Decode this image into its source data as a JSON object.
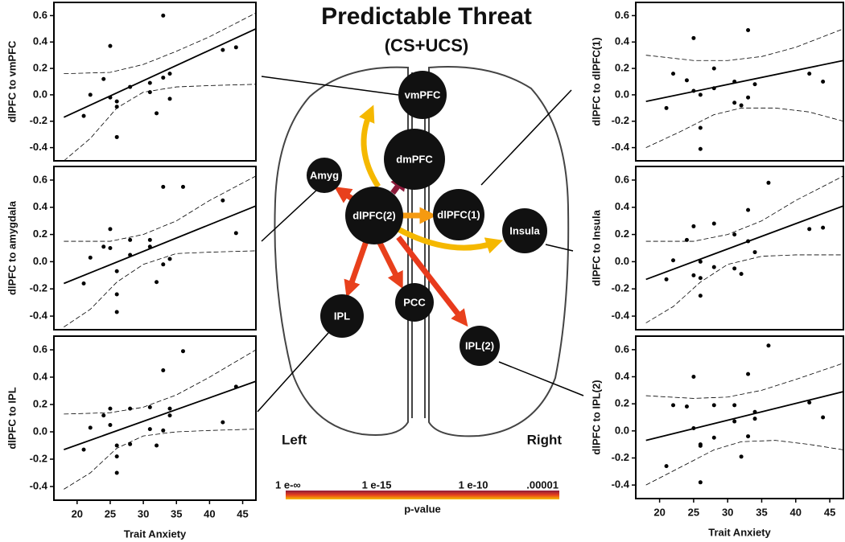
{
  "title": "Predictable Threat",
  "subtitle": "(CS+UCS)",
  "diagram": {
    "nodes": [
      "vmPFC",
      "dmPFC",
      "Amyg",
      "dlPFC(2)",
      "dlPFC(1)",
      "Insula",
      "PCC",
      "IPL",
      "IPL(2)"
    ],
    "left_label": "Left",
    "right_label": "Right",
    "colorbar": {
      "ticks": [
        "1 e-∞",
        "1 e-15",
        "1 e-10",
        ".00001"
      ],
      "label": "p-value"
    }
  },
  "chart_data": [
    {
      "type": "scatter",
      "ylabel": "dlPFC to vmPFC",
      "x": [
        21,
        22,
        24,
        25,
        25,
        26,
        26,
        26,
        28,
        31,
        31,
        32,
        33,
        33,
        34,
        34,
        42,
        44
      ],
      "values": [
        -0.16,
        0.0,
        0.12,
        0.37,
        -0.02,
        -0.05,
        -0.09,
        -0.32,
        0.06,
        0.09,
        0.02,
        -0.14,
        0.6,
        0.13,
        0.16,
        -0.03,
        0.34,
        0.36
      ],
      "fit": {
        "x": [
          18,
          47
        ],
        "values": [
          -0.17,
          0.5
        ]
      },
      "ci_upper": {
        "x": [
          18,
          25,
          30,
          35,
          40,
          47
        ],
        "values": [
          0.16,
          0.17,
          0.23,
          0.33,
          0.44,
          0.62
        ]
      },
      "ci_lower": {
        "x": [
          18,
          22,
          26,
          30,
          35,
          40,
          47
        ],
        "values": [
          -0.5,
          -0.33,
          -0.1,
          0.02,
          0.06,
          0.07,
          0.08
        ]
      },
      "xlim": [
        16.5,
        47
      ],
      "ylim": [
        -0.5,
        0.7
      ],
      "yticks": [
        -0.4,
        -0.2,
        {
          "value": 0,
          "label": "0.0"
        },
        0.2,
        0.4,
        0.6
      ]
    },
    {
      "type": "scatter",
      "ylabel": "dlPFC to amygdala",
      "x": [
        21,
        22,
        24,
        25,
        25,
        26,
        26,
        26,
        28,
        28,
        31,
        31,
        32,
        33,
        33,
        34,
        36,
        42,
        44
      ],
      "values": [
        -0.16,
        0.03,
        0.11,
        0.24,
        0.1,
        -0.07,
        -0.24,
        -0.37,
        0.16,
        0.05,
        0.16,
        0.11,
        -0.15,
        0.55,
        -0.02,
        0.02,
        0.55,
        0.45,
        0.21
      ],
      "fit": {
        "x": [
          18,
          47
        ],
        "values": [
          -0.16,
          0.41
        ]
      },
      "ci_upper": {
        "x": [
          18,
          25,
          30,
          35,
          40,
          47
        ],
        "values": [
          0.15,
          0.15,
          0.2,
          0.3,
          0.45,
          0.63
        ]
      },
      "ci_lower": {
        "x": [
          18,
          22,
          26,
          30,
          35,
          40,
          47
        ],
        "values": [
          -0.48,
          -0.35,
          -0.15,
          -0.02,
          0.06,
          0.07,
          0.08
        ]
      },
      "xlim": [
        16.5,
        47
      ],
      "ylim": [
        -0.5,
        0.7
      ],
      "yticks": [
        -0.4,
        -0.2,
        {
          "value": 0,
          "label": "0.0"
        },
        0.2,
        0.4,
        0.6
      ]
    },
    {
      "type": "scatter",
      "ylabel": "dlPFC to IPL",
      "xlabel": "Trait Anxiety",
      "x": [
        21,
        22,
        24,
        25,
        25,
        26,
        26,
        26,
        28,
        28,
        31,
        31,
        32,
        33,
        33,
        34,
        34,
        36,
        42,
        44
      ],
      "values": [
        -0.13,
        0.03,
        0.12,
        0.17,
        0.05,
        -0.1,
        -0.18,
        -0.3,
        0.17,
        -0.09,
        0.18,
        0.02,
        -0.1,
        0.45,
        0.01,
        0.12,
        0.17,
        0.59,
        0.07,
        0.33
      ],
      "fit": {
        "x": [
          18,
          47
        ],
        "values": [
          -0.13,
          0.37
        ]
      },
      "ci_upper": {
        "x": [
          18,
          25,
          30,
          35,
          40,
          47
        ],
        "values": [
          0.13,
          0.14,
          0.18,
          0.27,
          0.4,
          0.6
        ]
      },
      "ci_lower": {
        "x": [
          18,
          22,
          26,
          30,
          35,
          40,
          47
        ],
        "values": [
          -0.42,
          -0.3,
          -0.12,
          -0.03,
          0.0,
          0.01,
          0.02
        ]
      },
      "xlim": [
        16.5,
        47
      ],
      "ylim": [
        -0.5,
        0.7
      ],
      "xticks": [
        20,
        25,
        30,
        35,
        40,
        45
      ],
      "yticks": [
        -0.4,
        -0.2,
        {
          "value": 0,
          "label": "0.0"
        },
        0.2,
        0.4,
        0.6
      ]
    },
    {
      "type": "scatter",
      "ylabel": "dlPFC to dlPFC(1)",
      "x": [
        21,
        22,
        24,
        25,
        25,
        26,
        26,
        26,
        28,
        28,
        31,
        31,
        32,
        33,
        33,
        34,
        42,
        44
      ],
      "values": [
        -0.1,
        0.16,
        0.11,
        0.43,
        0.03,
        0.0,
        -0.25,
        -0.41,
        0.2,
        0.05,
        0.1,
        -0.06,
        -0.08,
        0.49,
        -0.02,
        0.08,
        0.16,
        0.1
      ],
      "fit": {
        "x": [
          18,
          47
        ],
        "values": [
          -0.05,
          0.26
        ]
      },
      "ci_upper": {
        "x": [
          18,
          25,
          30,
          35,
          40,
          47
        ],
        "values": [
          0.3,
          0.26,
          0.26,
          0.29,
          0.36,
          0.5
        ]
      },
      "ci_lower": {
        "x": [
          18,
          23,
          28,
          32,
          37,
          42,
          47
        ],
        "values": [
          -0.4,
          -0.28,
          -0.15,
          -0.1,
          -0.1,
          -0.13,
          -0.2
        ]
      },
      "xlim": [
        16.5,
        47
      ],
      "ylim": [
        -0.5,
        0.7
      ],
      "yticks": [
        -0.4,
        -0.2,
        {
          "value": 0,
          "label": "0.0"
        },
        0.2,
        0.4,
        0.6
      ]
    },
    {
      "type": "scatter",
      "ylabel": "dlPFC to Insula",
      "x": [
        21,
        22,
        24,
        25,
        25,
        26,
        26,
        26,
        28,
        28,
        31,
        31,
        32,
        33,
        33,
        34,
        36,
        42,
        44
      ],
      "values": [
        -0.13,
        0.01,
        0.16,
        0.26,
        -0.1,
        0.0,
        -0.12,
        -0.25,
        0.28,
        -0.04,
        0.2,
        -0.05,
        -0.09,
        0.38,
        0.15,
        0.07,
        0.58,
        0.24,
        0.25
      ],
      "fit": {
        "x": [
          18,
          47
        ],
        "values": [
          -0.13,
          0.41
        ]
      },
      "ci_upper": {
        "x": [
          18,
          25,
          30,
          35,
          40,
          47
        ],
        "values": [
          0.15,
          0.15,
          0.2,
          0.3,
          0.45,
          0.63
        ]
      },
      "ci_lower": {
        "x": [
          18,
          22,
          26,
          30,
          35,
          40,
          47
        ],
        "values": [
          -0.45,
          -0.33,
          -0.15,
          -0.02,
          0.04,
          0.05,
          0.05
        ]
      },
      "xlim": [
        16.5,
        47
      ],
      "ylim": [
        -0.5,
        0.7
      ],
      "yticks": [
        -0.4,
        -0.2,
        {
          "value": 0,
          "label": "0.0"
        },
        0.2,
        0.4,
        0.6
      ]
    },
    {
      "type": "scatter",
      "ylabel": "dlPFC to IPL(2)",
      "xlabel": "Trait Anxiety",
      "x": [
        21,
        22,
        24,
        25,
        25,
        26,
        26,
        26,
        28,
        28,
        31,
        31,
        32,
        33,
        33,
        34,
        34,
        36,
        42,
        44
      ],
      "values": [
        -0.26,
        0.19,
        0.18,
        0.4,
        0.02,
        -0.1,
        -0.11,
        -0.38,
        0.19,
        -0.05,
        0.19,
        0.07,
        -0.19,
        0.42,
        -0.04,
        0.09,
        0.14,
        0.63,
        0.21,
        0.1
      ],
      "fit": {
        "x": [
          18,
          47
        ],
        "values": [
          -0.07,
          0.29
        ]
      },
      "ci_upper": {
        "x": [
          18,
          25,
          30,
          35,
          40,
          47
        ],
        "values": [
          0.26,
          0.24,
          0.25,
          0.3,
          0.38,
          0.5
        ]
      },
      "ci_lower": {
        "x": [
          18,
          23,
          28,
          32,
          37,
          42,
          47
        ],
        "values": [
          -0.4,
          -0.27,
          -0.14,
          -0.08,
          -0.07,
          -0.1,
          -0.14
        ]
      },
      "xlim": [
        16.5,
        47
      ],
      "ylim": [
        -0.5,
        0.7
      ],
      "xticks": [
        20,
        25,
        30,
        35,
        40,
        45
      ],
      "yticks": [
        -0.4,
        -0.2,
        {
          "value": 0,
          "label": "0.0"
        },
        0.2,
        0.4,
        0.6
      ]
    }
  ]
}
